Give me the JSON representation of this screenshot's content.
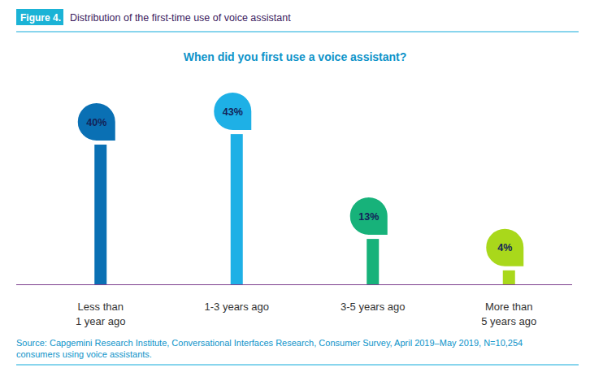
{
  "chart_data": {
    "type": "bar",
    "figure_label": "Figure 4.",
    "title": "Distribution of the first-time use of voice assistant",
    "subtitle": "When did you first use a voice assistant?",
    "categories": [
      "Less than 1 year ago",
      "1-3 years ago",
      "3-5 years ago",
      "More than 5 years ago"
    ],
    "values": [
      40,
      43,
      13,
      4
    ],
    "value_labels": [
      "40%",
      "43%",
      "13%",
      "4%"
    ],
    "colors": [
      "#0a70b4",
      "#1eb0e6",
      "#17b27a",
      "#a9d81b"
    ],
    "ylim": [
      0,
      43
    ],
    "tick_labels": false,
    "data_labels": true,
    "grid": false,
    "source": "Source: Capgemini Research Institute, Conversational Interfaces Research, Consumer Survey, April 2019–May 2019, N=10,254 consumers using voice assistants."
  }
}
